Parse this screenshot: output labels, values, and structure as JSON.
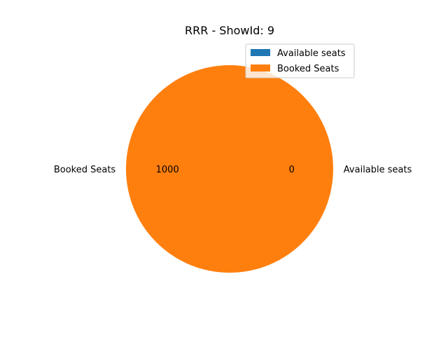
{
  "chart_data": {
    "type": "pie",
    "title": "RRR - ShowId: 9",
    "slices": [
      {
        "label": "Available seats",
        "value": 0,
        "value_label": "0",
        "color": "#1f77b4"
      },
      {
        "label": "Booked Seats",
        "value": 1000,
        "value_label": "1000",
        "color": "#ff7f0e"
      }
    ],
    "legend": {
      "placement": "top-right",
      "entries": [
        {
          "label": "Available seats",
          "color": "#1f77b4"
        },
        {
          "label": "Booked Seats",
          "color": "#ff7f0e"
        }
      ]
    }
  }
}
